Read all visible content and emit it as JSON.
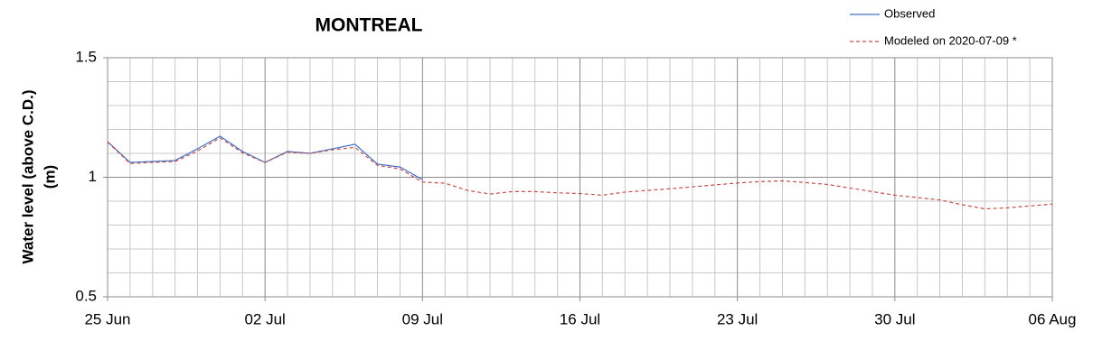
{
  "chart_data": {
    "type": "line",
    "title": "MONTREAL",
    "ylabel": [
      "Water level (above C.D.)",
      "(m)"
    ],
    "x": [
      0,
      1,
      2,
      3,
      4,
      5,
      6,
      7,
      8,
      9,
      10,
      11,
      12,
      13,
      14,
      15,
      16,
      17,
      18,
      19,
      20,
      21,
      22,
      23,
      24,
      25,
      26,
      27,
      28,
      29,
      30,
      31,
      32,
      33,
      34,
      35,
      36,
      37,
      38,
      39,
      40,
      41,
      42
    ],
    "series": [
      {
        "name": "Observed",
        "color": "#4472c4",
        "dash": false,
        "values": [
          1.149,
          1.062,
          1.066,
          1.07,
          1.119,
          1.172,
          1.108,
          1.062,
          1.108,
          1.1,
          1.119,
          1.138,
          1.055,
          1.043,
          0.99,
          null,
          null,
          null,
          null,
          null,
          null,
          null,
          null,
          null,
          null,
          null,
          null,
          null,
          null,
          null,
          null,
          null,
          null,
          null,
          null,
          null,
          null,
          null,
          null,
          null,
          null,
          null,
          null
        ]
      },
      {
        "name": "Modeled on 2020-07-09 *",
        "color": "#c0504d",
        "dash": true,
        "values": [
          1.147,
          1.058,
          1.062,
          1.066,
          1.11,
          1.165,
          1.102,
          1.062,
          1.105,
          1.1,
          1.115,
          1.125,
          1.05,
          1.035,
          0.98,
          0.975,
          0.945,
          0.93,
          0.94,
          0.94,
          0.935,
          0.932,
          0.925,
          0.938,
          0.945,
          0.952,
          0.96,
          0.968,
          0.976,
          0.982,
          0.985,
          0.978,
          0.97,
          0.955,
          0.94,
          0.925,
          0.915,
          0.905,
          0.885,
          0.868,
          0.872,
          0.88,
          0.888
        ]
      }
    ],
    "xlim": [
      0,
      42
    ],
    "xticks": [
      {
        "value": 0,
        "label": "25 Jun"
      },
      {
        "value": 7,
        "label": "02 Jul"
      },
      {
        "value": 14,
        "label": "09 Jul"
      },
      {
        "value": 21,
        "label": "16 Jul"
      },
      {
        "value": 28,
        "label": "23 Jul"
      },
      {
        "value": 35,
        "label": "30 Jul"
      },
      {
        "value": 42,
        "label": "06 Aug"
      }
    ],
    "xminorticks": [
      1,
      2,
      3,
      4,
      5,
      6,
      8,
      9,
      10,
      11,
      12,
      13,
      15,
      16,
      17,
      18,
      19,
      20,
      22,
      23,
      24,
      25,
      26,
      27,
      29,
      30,
      31,
      32,
      33,
      34,
      36,
      37,
      38,
      39,
      40,
      41
    ],
    "ylim": [
      0.5,
      1.5
    ],
    "yticks": [
      {
        "value": 0.5,
        "label": "0.5"
      },
      1,
      1.5
    ],
    "yminorticks": [
      0.6,
      0.7,
      0.8,
      0.9,
      1.1,
      1.2,
      1.3,
      1.4
    ],
    "grid": true,
    "legend": "top-right"
  }
}
